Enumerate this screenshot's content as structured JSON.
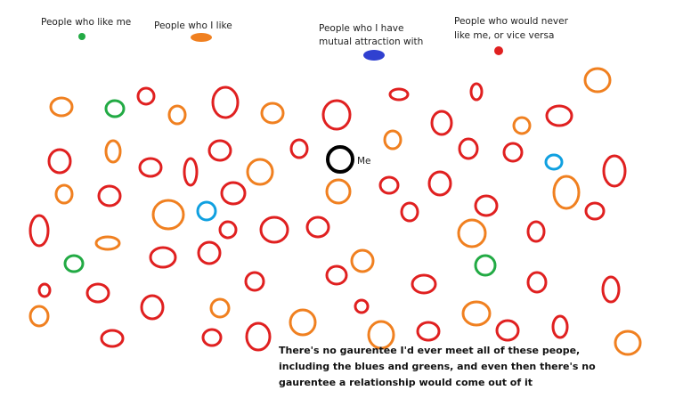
{
  "legend": [
    {
      "lines": [
        "People who like me"
      ]
    },
    {
      "lines": [
        "People who I like"
      ]
    },
    {
      "lines": [
        "People who I have",
        "mutual attraction with"
      ]
    },
    {
      "lines": [
        "People who would never",
        "like me, or vice versa"
      ]
    }
  ],
  "me_label": "Me",
  "note": {
    "lines": [
      "There's no gaurentee I'd ever meet all of these peope,",
      "including the blues and greens, and even then there's no",
      "gaurentee a relationship would come out of it"
    ]
  }
}
